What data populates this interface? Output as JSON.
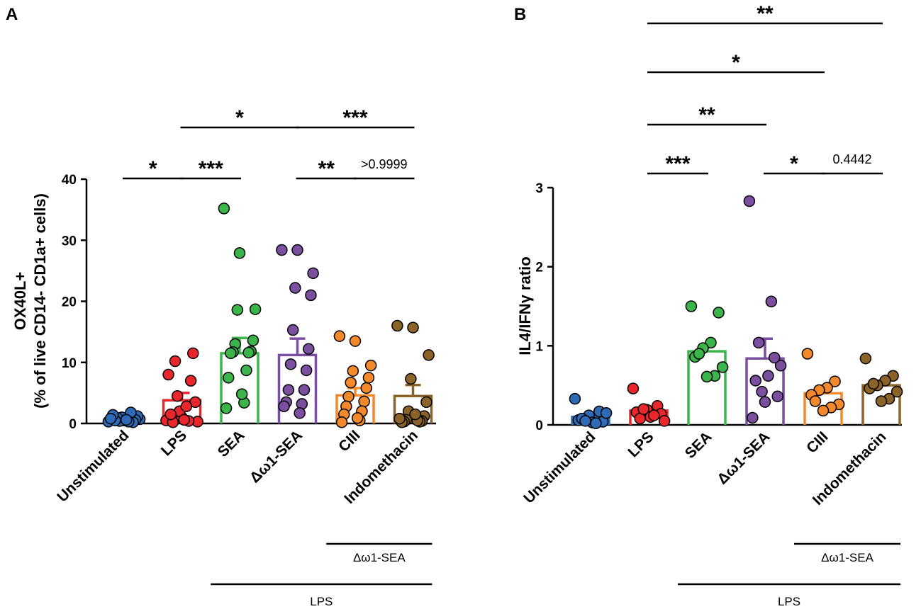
{
  "chart_data": [
    {
      "id": "A",
      "panel_label": "A",
      "type": "bar",
      "ylabel_lines": [
        "OX40L+",
        "(% of live CD14-  CD1a+ cells)"
      ],
      "ylim": [
        0,
        40
      ],
      "yticks": [
        "0",
        "10",
        "20",
        "30",
        "40"
      ],
      "categories": [
        "Unstimulated",
        "LPS",
        "SEA",
        "Δω1-SEA",
        "CIII",
        "Indomethacin"
      ],
      "colors": [
        "#2E6AB5",
        "#E8262B",
        "#3BB54A",
        "#7B4FA0",
        "#F3892B",
        "#8B6227"
      ],
      "means": [
        0.8,
        3.8,
        11.5,
        11.2,
        4.6,
        4.5
      ],
      "sem": [
        0.2,
        1.2,
        2.5,
        2.7,
        1.2,
        1.8
      ],
      "points": [
        [
          0.3,
          0.5,
          0.7,
          1.0,
          1.2,
          0.4,
          0.6,
          0.9,
          0.2,
          0.5,
          1.8,
          1.4,
          0.3,
          0.8,
          0.6
        ],
        [
          0.5,
          1.0,
          0.3,
          2.0,
          3.5,
          4.5,
          11.5,
          10.2,
          7.0,
          0.2,
          0.4,
          1.5,
          2.8,
          8.0,
          0.6
        ],
        [
          35.2,
          27.9,
          18.7,
          18.6,
          13.6,
          13.0,
          11.8,
          11.7,
          11.6,
          11.5,
          8.7,
          7.5,
          3.4,
          2.5,
          4.8
        ],
        [
          28.4,
          28.4,
          24.6,
          22.2,
          21.0,
          15.3,
          12.2,
          9.7,
          8.7,
          5.5,
          5.5,
          3.5,
          3.2,
          2.8,
          1.7
        ],
        [
          14.3,
          13.5,
          9.5,
          8.6,
          7.5,
          6.7,
          5.8,
          4.4,
          3.6,
          2.8,
          2.0,
          1.5,
          0.5,
          0.2,
          0.9
        ],
        [
          16.0,
          15.7,
          11.2,
          7.3,
          3.5,
          2.0,
          1.2,
          0.6,
          0.4,
          0.3,
          0.3,
          0.2,
          0.5,
          0.8,
          1.5
        ]
      ],
      "comparisons": [
        {
          "from": 0,
          "to": 1,
          "label": "*",
          "tier": 0
        },
        {
          "from": 1,
          "to": 2,
          "label": "***",
          "tier": 0
        },
        {
          "from": 3,
          "to": 4,
          "label": "**",
          "tier": 0
        },
        {
          "from": 4,
          "to": 5,
          "label": ">0.9999",
          "tier": 0
        },
        {
          "from": 1,
          "to": 3,
          "label": "*",
          "tier": 1
        },
        {
          "from": 3,
          "to": 5,
          "label": "***",
          "tier": 1
        }
      ],
      "group_lines": [
        {
          "from": 4,
          "to": 5,
          "label": "Δω1-SEA",
          "level": 0
        },
        {
          "from": 2,
          "to": 5,
          "label": "LPS",
          "level": 1
        }
      ]
    },
    {
      "id": "B",
      "panel_label": "B",
      "type": "bar",
      "ylabel_lines": [
        "IL4/IFNγ ratio"
      ],
      "ylim": [
        0,
        3
      ],
      "yticks": [
        "0",
        "1",
        "2",
        "3"
      ],
      "categories": [
        "Unstimulated",
        "LPS",
        "SEA",
        "Δω1-SEA",
        "CIII",
        "Indomethacin"
      ],
      "colors": [
        "#2E6AB5",
        "#E8262B",
        "#3BB54A",
        "#7B4FA0",
        "#F3892B",
        "#8B6227"
      ],
      "means": [
        0.1,
        0.18,
        0.93,
        0.84,
        0.4,
        0.5
      ],
      "sem": [
        0.03,
        0.05,
        0.08,
        0.25,
        0.07,
        0.05
      ],
      "points": [
        [
          0.33,
          0.17,
          0.12,
          0.06,
          0.04,
          0.03,
          0.08,
          0.15,
          0.02,
          0.05
        ],
        [
          0.46,
          0.24,
          0.19,
          0.16,
          0.14,
          0.1,
          0.08,
          0.05,
          0.12,
          0.2
        ],
        [
          1.5,
          1.42,
          1.04,
          0.97,
          0.86,
          0.73,
          0.62,
          0.61,
          0.9
        ],
        [
          2.83,
          1.56,
          1.04,
          0.75,
          0.62,
          0.56,
          0.36,
          0.29,
          0.09,
          0.85,
          0.42
        ],
        [
          0.9,
          0.55,
          0.47,
          0.44,
          0.38,
          0.26,
          0.22,
          0.18,
          0.3
        ],
        [
          0.84,
          0.62,
          0.56,
          0.5,
          0.46,
          0.42,
          0.33,
          0.3,
          0.52
        ]
      ],
      "comparisons": [
        {
          "from": 1,
          "to": 2,
          "label": "***",
          "tier": 0
        },
        {
          "from": 3,
          "to": 4,
          "label": "*",
          "tier": 0
        },
        {
          "from": 4,
          "to": 5,
          "label": "0.4442",
          "tier": 0
        },
        {
          "from": 1,
          "to": 3,
          "label": "**",
          "tier": 1
        },
        {
          "from": 1,
          "to": 4,
          "label": "*",
          "tier": 2
        },
        {
          "from": 1,
          "to": 5,
          "label": "**",
          "tier": 3
        }
      ],
      "group_lines": [
        {
          "from": 4,
          "to": 5,
          "label": "Δω1-SEA",
          "level": 0
        },
        {
          "from": 2,
          "to": 5,
          "label": "LPS",
          "level": 1
        }
      ]
    }
  ]
}
